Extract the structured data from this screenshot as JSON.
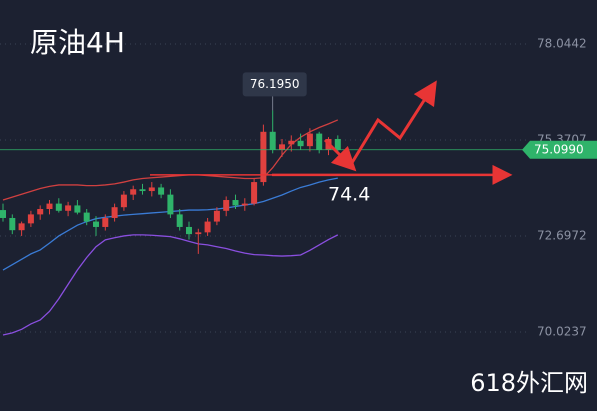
{
  "chart_data": {
    "type": "candlestick",
    "title": "原油4H",
    "watermark": "618外汇网",
    "ylim": [
      67.825,
      79.27
    ],
    "yticks": [
      70.0237,
      72.6972,
      75.3707,
      78.0442
    ],
    "grid": true,
    "up_color": "#e0413f",
    "down_color": "#2fb36a",
    "ohlc": [
      [
        73.42,
        73.6,
        73.1,
        73.2
      ],
      [
        73.2,
        73.3,
        72.75,
        72.86
      ],
      [
        72.86,
        73.1,
        72.7,
        73.05
      ],
      [
        73.05,
        73.4,
        72.95,
        73.3
      ],
      [
        73.3,
        73.55,
        73.15,
        73.45
      ],
      [
        73.45,
        73.7,
        73.3,
        73.6
      ],
      [
        73.6,
        73.75,
        73.35,
        73.4
      ],
      [
        73.4,
        73.65,
        73.25,
        73.55
      ],
      [
        73.55,
        73.7,
        73.3,
        73.35
      ],
      [
        73.35,
        73.45,
        73.0,
        73.1
      ],
      [
        73.1,
        73.25,
        72.7,
        72.95
      ],
      [
        72.95,
        73.3,
        72.85,
        73.2
      ],
      [
        73.2,
        73.6,
        73.1,
        73.5
      ],
      [
        73.5,
        73.95,
        73.4,
        73.85
      ],
      [
        73.85,
        74.1,
        73.7,
        74.0
      ],
      [
        74.0,
        74.15,
        73.85,
        73.95
      ],
      [
        73.95,
        74.2,
        73.8,
        74.05
      ],
      [
        74.05,
        74.15,
        73.75,
        73.85
      ],
      [
        73.85,
        74.0,
        73.2,
        73.3
      ],
      [
        73.3,
        73.45,
        72.85,
        72.95
      ],
      [
        72.95,
        73.1,
        72.6,
        72.75
      ],
      [
        72.75,
        72.9,
        72.2,
        72.8
      ],
      [
        72.8,
        73.2,
        72.7,
        73.1
      ],
      [
        73.1,
        73.5,
        73.0,
        73.4
      ],
      [
        73.4,
        73.8,
        73.25,
        73.7
      ],
      [
        73.7,
        73.85,
        73.45,
        73.55
      ],
      [
        73.55,
        73.75,
        73.4,
        73.6
      ],
      [
        73.6,
        74.3,
        73.55,
        74.2
      ],
      [
        74.2,
        75.8,
        74.1,
        75.6
      ],
      [
        75.6,
        76.195,
        75.0,
        75.1
      ],
      [
        75.1,
        75.4,
        74.9,
        75.25
      ],
      [
        75.25,
        75.5,
        75.05,
        75.35
      ],
      [
        75.35,
        75.55,
        75.1,
        75.2
      ],
      [
        75.2,
        75.7,
        75.05,
        75.55
      ],
      [
        75.55,
        75.6,
        75.0,
        75.1
      ],
      [
        75.1,
        75.45,
        74.95,
        75.4
      ],
      [
        75.4,
        75.5,
        75.05,
        75.1
      ]
    ],
    "series": [
      {
        "color": "#d04040",
        "values": [
          73.7,
          73.78,
          73.86,
          73.94,
          74.02,
          74.08,
          74.12,
          74.12,
          74.12,
          74.1,
          74.1,
          74.12,
          74.15,
          74.2,
          74.26,
          74.3,
          74.32,
          74.34,
          74.36,
          74.38,
          74.4,
          74.4,
          74.38,
          74.36,
          74.34,
          74.32,
          74.3,
          74.3,
          74.32,
          74.6,
          74.95,
          75.25,
          75.45,
          75.6,
          75.72,
          75.82,
          75.93
        ]
      },
      {
        "color": "#3a7bd5",
        "values": [
          71.75,
          71.9,
          72.05,
          72.2,
          72.31,
          72.5,
          72.7,
          72.85,
          73.0,
          73.1,
          73.18,
          73.22,
          73.25,
          73.28,
          73.3,
          73.32,
          73.34,
          73.36,
          73.38,
          73.4,
          73.42,
          73.42,
          73.43,
          73.45,
          73.48,
          73.52,
          73.56,
          73.6,
          73.66,
          73.75,
          73.84,
          73.95,
          74.05,
          74.12,
          74.2,
          74.26,
          74.31
        ]
      },
      {
        "color": "#8a4fe0",
        "values": [
          69.94,
          70.0,
          70.1,
          70.25,
          70.36,
          70.6,
          70.95,
          71.35,
          71.75,
          72.1,
          72.4,
          72.59,
          72.65,
          72.7,
          72.73,
          72.73,
          72.72,
          72.7,
          72.68,
          72.62,
          72.55,
          72.48,
          72.45,
          72.4,
          72.35,
          72.28,
          72.22,
          72.18,
          72.17,
          72.15,
          72.14,
          72.15,
          72.17,
          72.3,
          72.45,
          72.6,
          72.73
        ]
      }
    ],
    "max_label": {
      "value": 76.195,
      "label": "76.1950"
    },
    "last_price": {
      "value": 75.099,
      "label": "75.0990"
    },
    "support": {
      "value": 74.4,
      "label": "74.4"
    }
  }
}
